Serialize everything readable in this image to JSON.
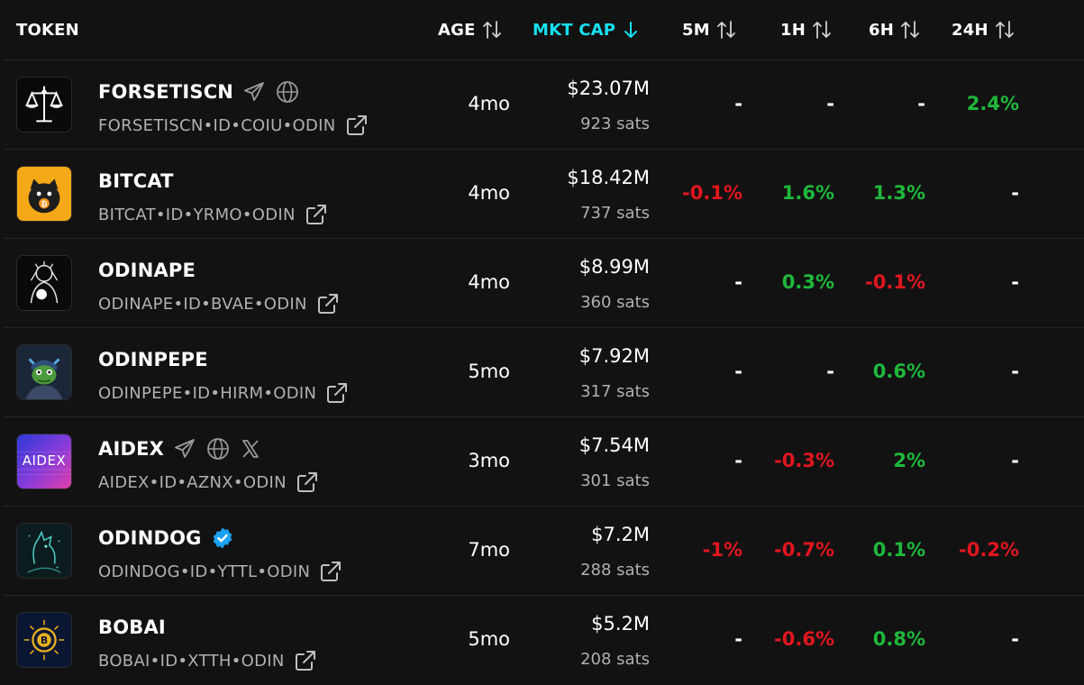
{
  "header": {
    "token": "TOKEN",
    "age": "AGE",
    "mkt_cap": "MKT CAP",
    "m5": "5M",
    "h1": "1H",
    "h6": "6H",
    "h24": "24H"
  },
  "colors": {
    "background": "#121212",
    "active_sort": "#18e0f0",
    "positive": "#1fb83b",
    "negative": "#e0161e",
    "muted": "#b0b0b0"
  },
  "rows": [
    {
      "name": "FORSETISCN",
      "id": "FORSETISCN•ID•COIU•ODIN",
      "age": "4mo",
      "mcap": "$23.07M",
      "sats": "923 sats",
      "m5": "-",
      "h1": "-",
      "h6": "-",
      "h24": "2.4%",
      "icons": [
        "telegram-icon",
        "globe-icon"
      ],
      "avatar": "scales-logo"
    },
    {
      "name": "BITCAT",
      "id": "BITCAT•ID•YRMO•ODIN",
      "age": "4mo",
      "mcap": "$18.42M",
      "sats": "737 sats",
      "m5": "-0.1%",
      "h1": "1.6%",
      "h6": "1.3%",
      "h24": "-",
      "icons": [],
      "avatar": "bitcat-logo"
    },
    {
      "name": "ODINAPE",
      "id": "ODINAPE•ID•BVAE•ODIN",
      "age": "4mo",
      "mcap": "$8.99M",
      "sats": "360 sats",
      "m5": "-",
      "h1": "0.3%",
      "h6": "-0.1%",
      "h24": "-",
      "icons": [],
      "avatar": "ape-logo"
    },
    {
      "name": "ODINPEPE",
      "id": "ODINPEPE•ID•HIRM•ODIN",
      "age": "5mo",
      "mcap": "$7.92M",
      "sats": "317 sats",
      "m5": "-",
      "h1": "-",
      "h6": "0.6%",
      "h24": "-",
      "icons": [],
      "avatar": "pepe-logo"
    },
    {
      "name": "AIDEX",
      "id": "AIDEX•ID•AZNX•ODIN",
      "age": "3mo",
      "mcap": "$7.54M",
      "sats": "301 sats",
      "m5": "-",
      "h1": "-0.3%",
      "h6": "2%",
      "h24": "-",
      "icons": [
        "telegram-icon",
        "globe-icon",
        "x-icon"
      ],
      "avatar": "aidex-logo",
      "avatar_text": "AIDEX"
    },
    {
      "name": "ODINDOG",
      "id": "ODINDOG•ID•YTTL•ODIN",
      "age": "7mo",
      "mcap": "$7.2M",
      "sats": "288 sats",
      "m5": "-1%",
      "h1": "-0.7%",
      "h6": "0.1%",
      "h24": "-0.2%",
      "icons": [
        "verified-badge-icon"
      ],
      "avatar": "dog-logo"
    },
    {
      "name": "BOBAI",
      "id": "BOBAI•ID•XTTH•ODIN",
      "age": "5mo",
      "mcap": "$5.2M",
      "sats": "208 sats",
      "m5": "-",
      "h1": "-0.6%",
      "h6": "0.8%",
      "h24": "-",
      "icons": [],
      "avatar": "bobai-logo"
    }
  ]
}
